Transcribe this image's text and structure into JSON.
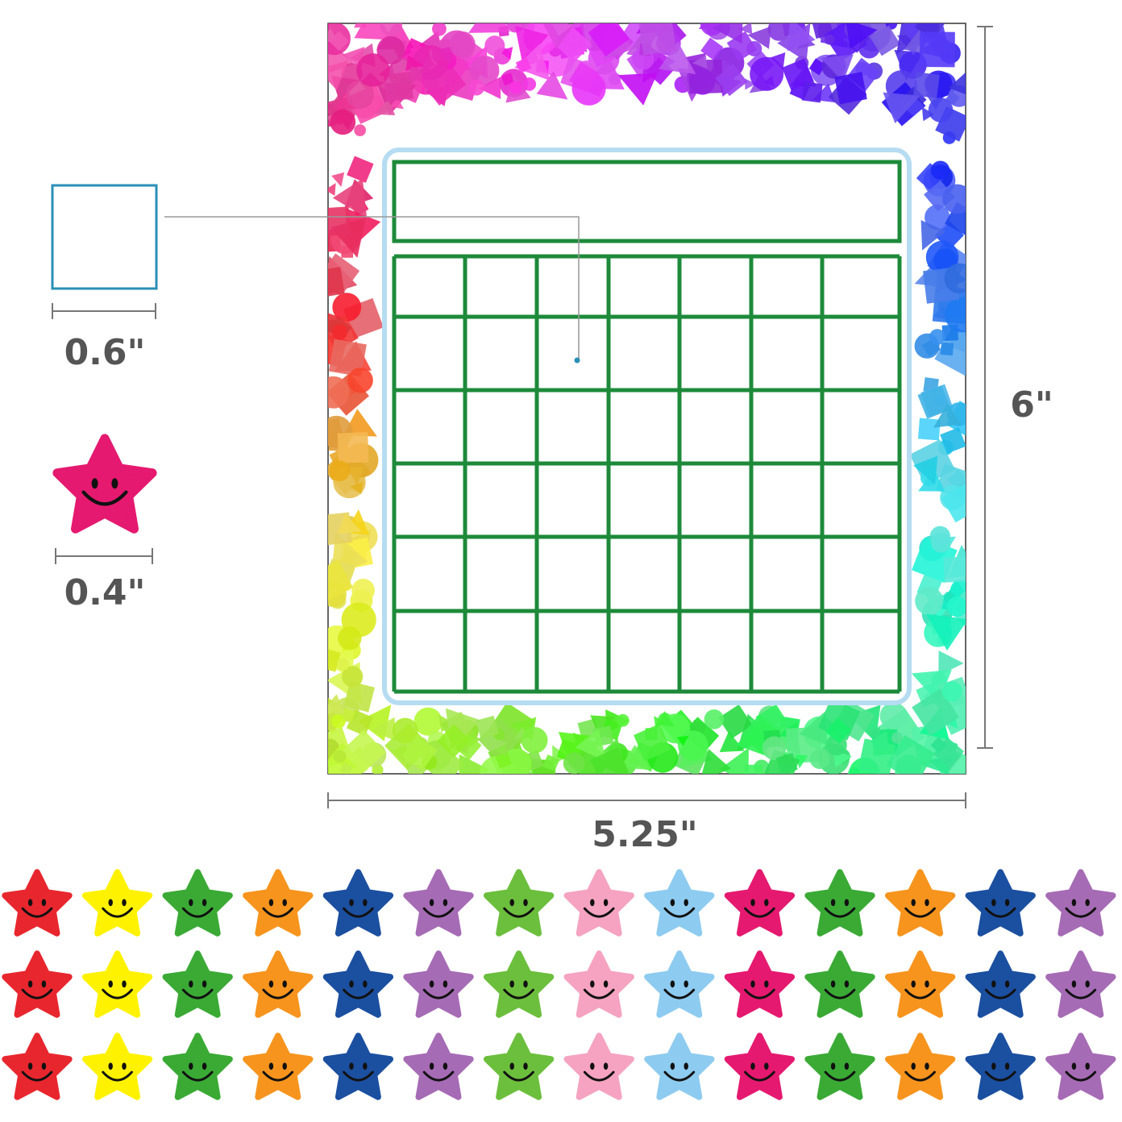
{
  "dimensions": {
    "square_size": "0.6\"",
    "star_size": "0.4\"",
    "chart_height": "6\"",
    "chart_width": "5.25\""
  }
}
